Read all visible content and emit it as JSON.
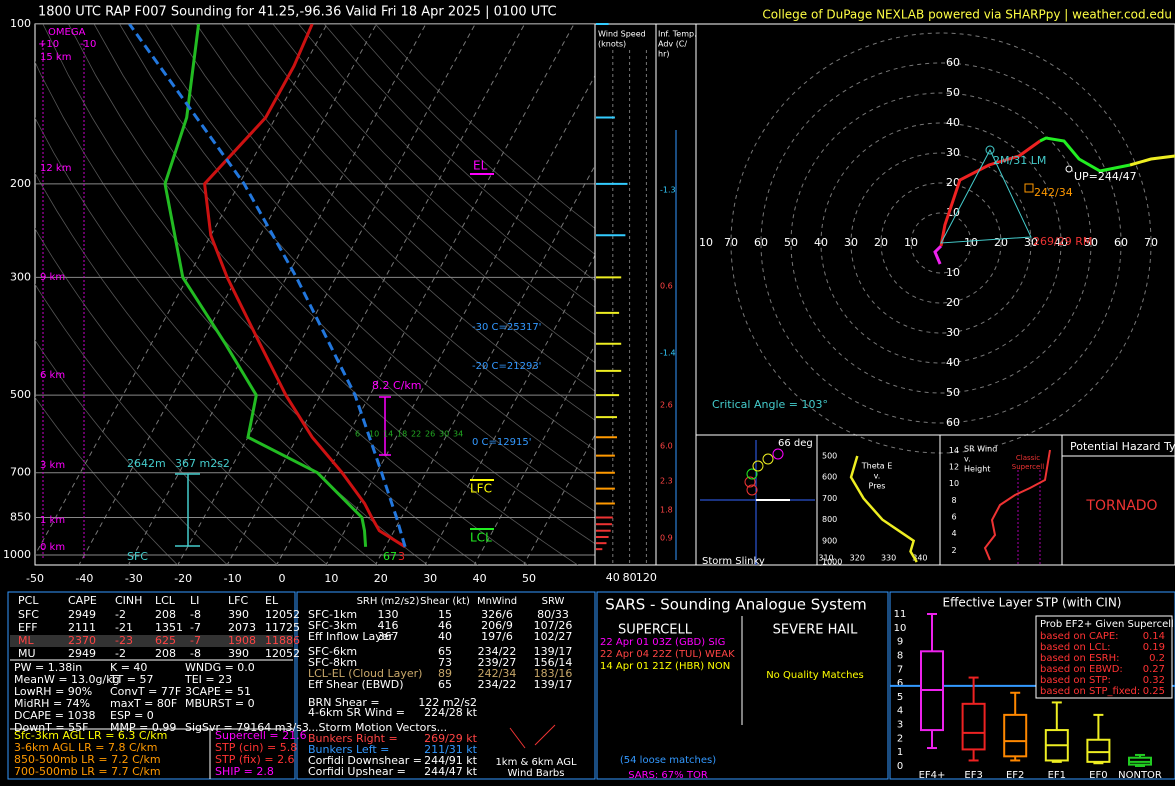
{
  "header": {
    "title": "1800 UTC RAP F007 Sounding for 41.25,-96.36 Valid  Fri 18 Apr 2025 | 0100 UTC",
    "credit": "College of DuPage NEXLAB powered via SHARPpy | weather.cod.edu"
  },
  "chart_data": {
    "type": "skewt",
    "ylim": [
      1000,
      100
    ],
    "xlim": [
      -50,
      50
    ],
    "log_scale": true,
    "grid": true,
    "pressure_ticks": [
      100,
      200,
      300,
      500,
      700,
      850,
      1000
    ],
    "temp_ticks": [
      -50,
      -40,
      -30,
      -20,
      -10,
      0,
      10,
      20,
      30,
      40,
      50
    ],
    "temperature": {
      "color": "#cc1111",
      "pressure": [
        965,
        900,
        850,
        800,
        700,
        600,
        500,
        400,
        300,
        250,
        200,
        150,
        120,
        100
      ],
      "values": [
        24,
        17,
        14,
        11,
        3,
        -7,
        -17,
        -28,
        -42,
        -50,
        -57,
        -52,
        -52,
        -53
      ]
    },
    "dewpoint": {
      "color": "#22bb22",
      "pressure": [
        965,
        900,
        850,
        700,
        600,
        500,
        400,
        300,
        200,
        150,
        100
      ],
      "values": [
        16,
        14,
        12,
        -2,
        -20,
        -23,
        -35,
        -51,
        -65,
        -68,
        -76
      ]
    },
    "parcel": {
      "color": "#2277dd",
      "pressure": [
        965,
        850,
        700,
        500,
        300,
        200,
        100
      ],
      "values": [
        24,
        19,
        11,
        -3,
        -28,
        -49,
        -90
      ]
    }
  },
  "skewt_labels": {
    "el": "EL",
    "lfc": "LFC",
    "lcl": "LCL",
    "m30": "-30 C=25317'",
    "m20": "-20 C=21293'",
    "zero": "0 C=12915'",
    "lapse": "8.2 C/km",
    "depth": "2642m",
    "esrh": "367 m2s2",
    "sfc": "SFC",
    "td": "67",
    "t": "3",
    "heights": [
      "15 km",
      "12 km",
      "9 km",
      "6 km",
      "3 km",
      "1 km",
      "0 km"
    ],
    "omega": [
      "OMEGA",
      "+10",
      "-10"
    ],
    "mixing": [
      "6",
      "10",
      "14",
      "18",
      "22",
      "26",
      "30",
      "34"
    ]
  },
  "wind_panel": {
    "title": [
      "Wind Speed",
      "(knots)"
    ],
    "ticks": [
      40,
      80,
      120
    ],
    "pressure": [
      975,
      950,
      925,
      900,
      875,
      850,
      800,
      750,
      700,
      650,
      600,
      550,
      500,
      450,
      400,
      350,
      300,
      250,
      200,
      150,
      100
    ],
    "speed": [
      15,
      25,
      30,
      35,
      38,
      40,
      45,
      45,
      45,
      45,
      50,
      50,
      55,
      60,
      60,
      55,
      60,
      70,
      75,
      45,
      30
    ]
  },
  "advection": {
    "title": [
      "Inf. Temp.",
      "Adv (C/",
      "hr)"
    ],
    "labels": [
      "-1.3",
      "0.6",
      "-1.4",
      "2.6",
      "6.0",
      "2.3",
      "1.8",
      "0.9"
    ]
  },
  "hodograph": {
    "ticks": [
      10,
      20,
      30,
      40,
      50,
      60,
      70
    ],
    "series": [
      {
        "color": "#ee22ee",
        "u": [
          -0.3,
          -2,
          0
        ],
        "v": [
          -7,
          -3,
          -1
        ]
      },
      {
        "color": "#ee2222",
        "u": [
          0,
          1.3,
          6.3,
          16,
          26,
          33
        ],
        "v": [
          -1,
          6,
          21,
          26,
          29,
          34
        ]
      },
      {
        "color": "#22ee22",
        "u": [
          33,
          35,
          41,
          46,
          53,
          63
        ],
        "v": [
          34,
          35,
          34,
          28,
          24,
          26
        ]
      },
      {
        "color": "#eeee22",
        "u": [
          63,
          70,
          78
        ],
        "v": [
          26,
          28,
          29
        ]
      }
    ],
    "labels": {
      "lm": "2M/31 LM",
      "up": "UP=244/47",
      "mean": "242/34",
      "rm": "269/29 RM",
      "crit": "Critical Angle = 103°"
    }
  },
  "slinky": {
    "angle": "66 deg",
    "title": "Storm Slinky"
  },
  "theta": {
    "title": [
      "Theta E",
      "v.",
      "Pres"
    ],
    "xticks": [
      310,
      320,
      330,
      340
    ],
    "yticks": [
      500,
      600,
      700,
      800,
      900,
      1000
    ],
    "pressure": [
      500,
      600,
      700,
      800,
      850,
      900,
      950,
      1000
    ],
    "values": [
      320,
      318,
      322,
      328,
      333,
      338,
      337,
      339
    ]
  },
  "srwind": {
    "title": [
      "SR Wind",
      "v.",
      "Height"
    ],
    "yticks": [
      2,
      4,
      6,
      8,
      10,
      12,
      14
    ],
    "label": [
      "Classic",
      "Supercell"
    ]
  },
  "hazard": {
    "title": "Potential Hazard Type",
    "value": "TORNADO"
  },
  "thermo": {
    "header": [
      "PCL",
      "CAPE",
      "CINH",
      "LCL",
      "LI",
      "LFC",
      "EL"
    ],
    "rows": [
      [
        "SFC",
        "2949",
        "-2",
        "208",
        "-8",
        "390",
        "12052"
      ],
      [
        "EFF",
        "2111",
        "-21",
        "1351",
        "-7",
        "2073",
        "11725"
      ],
      [
        "ML",
        "2370",
        "-23",
        "625",
        "-7",
        "1908",
        "11886"
      ],
      [
        "MU",
        "2949",
        "-2",
        "208",
        "-8",
        "390",
        "12052"
      ]
    ],
    "left": [
      "PW = 1.38in",
      "MeanW = 13.0g/kg",
      "LowRH = 90%",
      "MidRH = 74%",
      "DCAPE = 1038",
      "DownT = 55F"
    ],
    "mid": [
      "K = 40",
      "TT = 57",
      "ConvT = 77F",
      "maxT = 80F",
      "ESP = 0",
      "MMP = 0.99"
    ],
    "right": [
      "WNDG = 0.0",
      "TEI = 23",
      "3CAPE = 51",
      "MBURST = 0",
      "SigSvr = 79164 m3/s3"
    ],
    "lapse": [
      "Sfc-3km AGL LR = 6.3 C/km",
      "3-6km AGL LR = 7.8 C/km",
      "850-500mb LR = 7.2 C/km",
      "700-500mb LR = 7.7 C/km"
    ],
    "composite": [
      "Supercell = 21.6",
      "STP (cin) = 5.8",
      "STP (fix) = 2.6",
      "SHIP = 2.8"
    ]
  },
  "kinematics": {
    "header": [
      "SRH (m2/s2)",
      "Shear (kt)",
      "MnWind",
      "SRW"
    ],
    "rows": [
      [
        "SFC-1km",
        "130",
        "15",
        "326/6",
        "80/33"
      ],
      [
        "SFC-3km",
        "416",
        "46",
        "206/9",
        "107/26"
      ],
      [
        "Eff Inflow Layer",
        "367",
        "40",
        "197/6",
        "102/27"
      ],
      [
        "SFC-6km",
        null,
        "65",
        "234/22",
        "139/17"
      ],
      [
        "SFC-8km",
        null,
        "73",
        "239/27",
        "156/14"
      ],
      [
        "LCL-EL (Cloud Layer)",
        null,
        "89",
        "242/34",
        "183/16"
      ],
      [
        "Eff Shear (EBWD)",
        null,
        "65",
        "234/22",
        "139/17"
      ]
    ],
    "lines": [
      [
        "BRN Shear = ",
        "122 m2/s2"
      ],
      [
        "4-6km SR Wind = ",
        "224/28 kt"
      ],
      [
        "...Storm Motion Vectors...",
        null
      ],
      [
        "Bunkers Right = ",
        "269/29 kt"
      ],
      [
        "Bunkers Left = ",
        "211/31 kt"
      ],
      [
        "Corfidi Downshear = ",
        "244/91 kt"
      ],
      [
        "Corfidi Upshear = ",
        "244/47 kt"
      ]
    ],
    "barbs": [
      "1km & 6km AGL",
      "Wind Barbs"
    ]
  },
  "sars": {
    "title": "SARS - Sounding Analogue System",
    "supercell": "SUPERCELL",
    "hail": "SEVERE HAIL",
    "matches": [
      "22 Apr 01 03Z (GBD)  SIG",
      "22 Apr 04 22Z (TUL)  WEAK",
      "14 Apr 01 21Z (HBR)  NON"
    ],
    "hail_matches": "No Quality Matches",
    "loose": "(54 loose matches)",
    "tor": "SARS: 67% TOR"
  },
  "stp": {
    "title": "Effective Layer STP (with CIN)",
    "categories": [
      "EF4+",
      "EF3",
      "EF2",
      "EF1",
      "EF0",
      "NONTOR"
    ],
    "colors": [
      "#ee22ee",
      "#ee2222",
      "#ff8800",
      "#eeee22",
      "#eeee22",
      "#22cc22"
    ],
    "ylim": [
      0,
      11
    ],
    "yticks": [
      0,
      1,
      2,
      3,
      4,
      5,
      6,
      7,
      8,
      9,
      10,
      11
    ],
    "current": 5.8,
    "low": [
      1.3,
      0.4,
      0.4,
      0.3,
      0.2,
      0
    ],
    "q1": [
      2.6,
      1.2,
      0.7,
      0.4,
      0.3,
      0.1
    ],
    "median": [
      5.5,
      2.4,
      1.8,
      1.5,
      1.0,
      0.3
    ],
    "q3": [
      8.3,
      4.5,
      3.7,
      2.6,
      1.9,
      0.6
    ],
    "high": [
      11,
      6.4,
      5.3,
      4.6,
      3.7,
      0.8
    ],
    "prob_title": "Prob EF2+ Given Supercell",
    "prob": [
      [
        "based on CAPE:",
        "0.14"
      ],
      [
        "based on LCL:",
        "0.19"
      ],
      [
        "based on ESRH:",
        "0.2"
      ],
      [
        "based on EBWD:",
        "0.27"
      ],
      [
        "based on STP:",
        "0.32"
      ],
      [
        "based on STP_fixed:",
        "0.25"
      ]
    ]
  }
}
